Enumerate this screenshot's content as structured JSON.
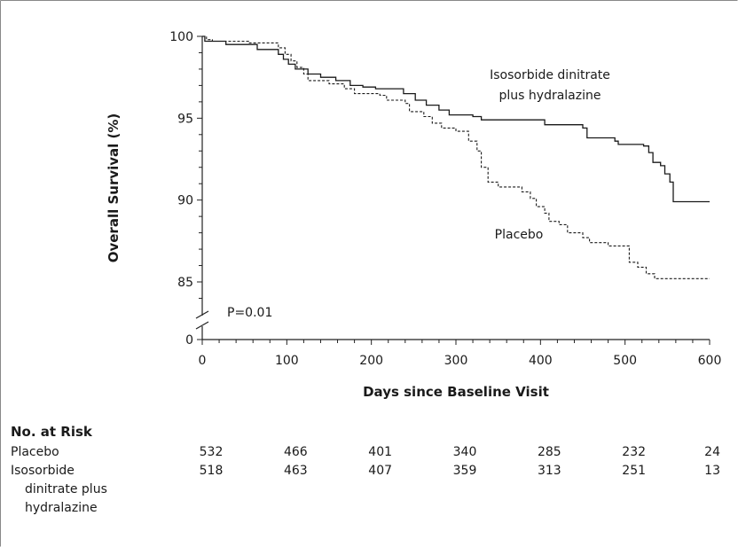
{
  "chart_data": {
    "type": "line",
    "ylabel": "Overall Survival (%)",
    "xlabel": "Days since Baseline Visit",
    "x_ticks": [
      0,
      100,
      200,
      300,
      400,
      500,
      600
    ],
    "y_ticks": [
      0,
      85,
      90,
      95,
      100
    ],
    "xlim": [
      0,
      600
    ],
    "ylim": [
      82,
      100
    ],
    "y_axis_break": true,
    "p_value_text": "P=0.01",
    "series": [
      {
        "name": "Isosorbide dinitrate plus hydralazine",
        "style": "solid",
        "points": [
          [
            0,
            100
          ],
          [
            3,
            99.7
          ],
          [
            18,
            99.7
          ],
          [
            28,
            99.5
          ],
          [
            55,
            99.5
          ],
          [
            65,
            99.2
          ],
          [
            78,
            99.2
          ],
          [
            90,
            98.9
          ],
          [
            96,
            98.6
          ],
          [
            102,
            98.3
          ],
          [
            110,
            98.0
          ],
          [
            125,
            97.7
          ],
          [
            140,
            97.5
          ],
          [
            158,
            97.3
          ],
          [
            175,
            97.0
          ],
          [
            190,
            96.9
          ],
          [
            205,
            96.8
          ],
          [
            225,
            96.8
          ],
          [
            238,
            96.5
          ],
          [
            252,
            96.1
          ],
          [
            265,
            95.8
          ],
          [
            280,
            95.5
          ],
          [
            292,
            95.2
          ],
          [
            320,
            95.1
          ],
          [
            330,
            94.9
          ],
          [
            390,
            94.9
          ],
          [
            405,
            94.6
          ],
          [
            450,
            94.4
          ],
          [
            455,
            93.8
          ],
          [
            488,
            93.6
          ],
          [
            492,
            93.4
          ],
          [
            522,
            93.3
          ],
          [
            528,
            92.9
          ],
          [
            533,
            92.3
          ],
          [
            542,
            92.1
          ],
          [
            547,
            91.6
          ],
          [
            553,
            91.1
          ],
          [
            557,
            89.9
          ],
          [
            600,
            89.9
          ]
        ]
      },
      {
        "name": "Placebo",
        "style": "dashed",
        "points": [
          [
            0,
            100
          ],
          [
            5,
            99.8
          ],
          [
            12,
            99.7
          ],
          [
            35,
            99.7
          ],
          [
            55,
            99.6
          ],
          [
            78,
            99.6
          ],
          [
            90,
            99.3
          ],
          [
            98,
            98.9
          ],
          [
            105,
            98.5
          ],
          [
            112,
            98.1
          ],
          [
            120,
            97.7
          ],
          [
            125,
            97.3
          ],
          [
            150,
            97.1
          ],
          [
            168,
            96.8
          ],
          [
            180,
            96.5
          ],
          [
            210,
            96.4
          ],
          [
            218,
            96.1
          ],
          [
            240,
            95.9
          ],
          [
            245,
            95.4
          ],
          [
            262,
            95.1
          ],
          [
            272,
            94.7
          ],
          [
            283,
            94.4
          ],
          [
            300,
            94.2
          ],
          [
            315,
            93.6
          ],
          [
            325,
            93.0
          ],
          [
            330,
            92.0
          ],
          [
            338,
            91.1
          ],
          [
            350,
            90.8
          ],
          [
            378,
            90.5
          ],
          [
            388,
            90.1
          ],
          [
            395,
            89.6
          ],
          [
            405,
            89.2
          ],
          [
            410,
            88.7
          ],
          [
            422,
            88.5
          ],
          [
            432,
            88.0
          ],
          [
            450,
            87.7
          ],
          [
            458,
            87.4
          ],
          [
            480,
            87.2
          ],
          [
            505,
            86.2
          ],
          [
            515,
            85.9
          ],
          [
            525,
            85.5
          ],
          [
            535,
            85.2
          ],
          [
            600,
            85.2
          ]
        ]
      }
    ],
    "series_labels": [
      {
        "lines": [
          "Isosorbide dinitrate",
          "plus hydralazine"
        ]
      },
      {
        "lines": [
          "Placebo"
        ]
      }
    ]
  },
  "risk_table": {
    "title": "No. at Risk",
    "rows": [
      {
        "label": [
          "Placebo"
        ],
        "values": [
          "532",
          "466",
          "401",
          "340",
          "285",
          "232",
          "24"
        ]
      },
      {
        "label": [
          "Isosorbide",
          "dinitrate plus",
          "hydralazine"
        ],
        "values": [
          "518",
          "463",
          "407",
          "359",
          "313",
          "251",
          "13"
        ]
      }
    ]
  }
}
